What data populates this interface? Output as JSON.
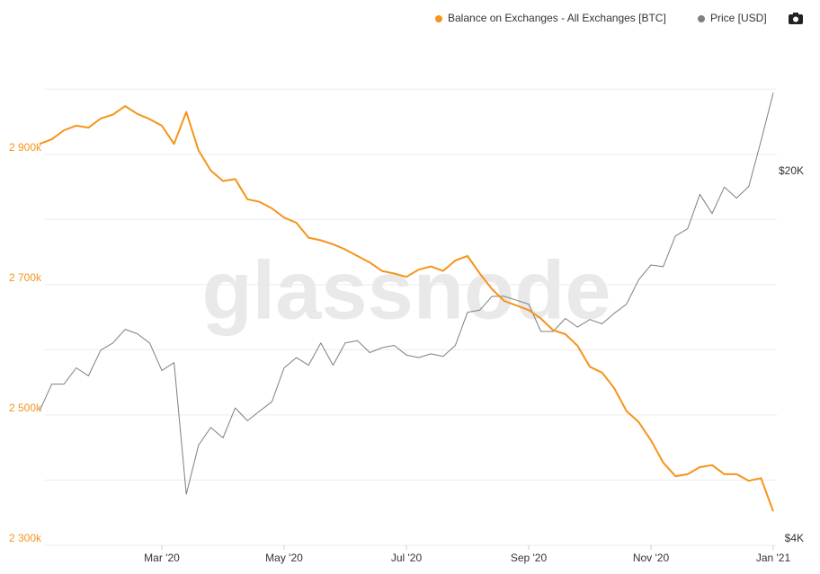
{
  "chart_data": {
    "type": "line",
    "watermark": "glassnode",
    "categories": [
      null,
      null,
      null,
      null,
      null,
      null,
      null,
      null,
      null,
      null,
      "Mar '20",
      null,
      null,
      null,
      null,
      null,
      null,
      null,
      null,
      null,
      "May '20",
      null,
      null,
      null,
      null,
      null,
      null,
      null,
      null,
      null,
      "Jul '20",
      null,
      null,
      null,
      null,
      null,
      null,
      null,
      null,
      null,
      "Sep '20",
      null,
      null,
      null,
      null,
      null,
      null,
      null,
      null,
      null,
      "Nov '20",
      null,
      null,
      null,
      null,
      null,
      null,
      null,
      null,
      null,
      "Jan '21"
    ],
    "series": [
      {
        "name": "Balance on Exchanges - All Exchanges [BTC]",
        "color": "#f7931a",
        "axis": "y",
        "values": [
          2916000,
          2923000,
          2937000,
          2944000,
          2941000,
          2955000,
          2961000,
          2974000,
          2962000,
          2954000,
          2944000,
          2916000,
          2965000,
          2906000,
          2875000,
          2859000,
          2862000,
          2831000,
          2827000,
          2817000,
          2803000,
          2795000,
          2772000,
          2768000,
          2762000,
          2754000,
          2744000,
          2734000,
          2721000,
          2717000,
          2712000,
          2723000,
          2728000,
          2721000,
          2737000,
          2744000,
          2717000,
          2693000,
          2675000,
          2668000,
          2661000,
          2648000,
          2630000,
          2624000,
          2606000,
          2574000,
          2565000,
          2541000,
          2506000,
          2489000,
          2461000,
          2427000,
          2406000,
          2409000,
          2420000,
          2423000,
          2409000,
          2409000,
          2399000,
          2403000,
          2352000
        ]
      },
      {
        "name": "Price [USD]",
        "color": "#7f7f7f",
        "axis": "y2",
        "values": [
          7200,
          8100,
          8100,
          8700,
          8400,
          9400,
          9700,
          10300,
          10100,
          9700,
          8600,
          8900,
          5000,
          6200,
          6700,
          6400,
          7300,
          6900,
          7200,
          7500,
          8700,
          9100,
          8800,
          9700,
          8800,
          9700,
          9800,
          9300,
          9500,
          9600,
          9200,
          9100,
          9250,
          9150,
          9600,
          11100,
          11200,
          11900,
          11900,
          11700,
          11500,
          10200,
          10200,
          10800,
          10400,
          10750,
          10550,
          11050,
          11500,
          12800,
          13650,
          13550,
          15500,
          16000,
          18600,
          17100,
          19200,
          18300,
          19250,
          23500,
          29000
        ]
      }
    ],
    "ylim": [
      2300000,
      3050000
    ],
    "yticks": [
      {
        "value": 2300000,
        "label": "2 300k"
      },
      {
        "value": 2500000,
        "label": "2 500k"
      },
      {
        "value": 2700000,
        "label": "2 700k"
      },
      {
        "value": 2900000,
        "label": "2 900k"
      }
    ],
    "minor_yticks": [
      2400000,
      2600000,
      2800000,
      3000000
    ],
    "y2lim": [
      4000,
      34000
    ],
    "y2scale": "log",
    "y2ticks": [
      {
        "value": 4000,
        "label": "$4K"
      },
      {
        "value": 20000,
        "label": "$20K"
      }
    ],
    "grid": true,
    "legend": "top-right"
  }
}
